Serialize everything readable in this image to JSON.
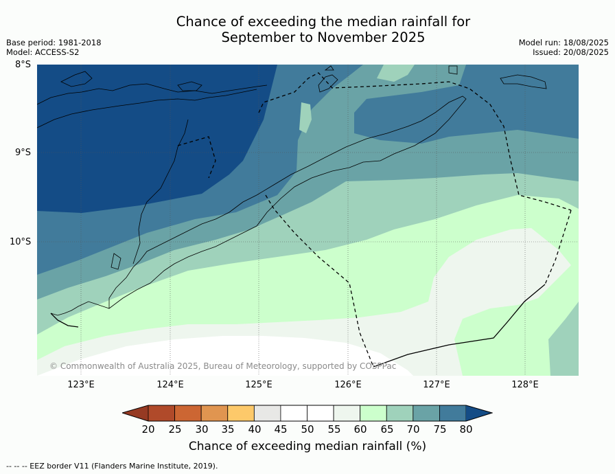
{
  "title_line1": "Chance of exceeding the median rainfall for",
  "title_line2": "September to November 2025",
  "base_period": "Base period: 1981-2018",
  "model": "Model: ACCESS-S2",
  "model_run": "Model run: 18/08/2025",
  "issued": "Issued: 20/08/2025",
  "lat_labels": [
    "8°S",
    "9°S",
    "10°S"
  ],
  "lon_labels": [
    "123°E",
    "124°E",
    "125°E",
    "126°E",
    "127°E",
    "128°E"
  ],
  "copyright": "© Commonwealth of Australia 2025, Bureau of Meteorology, supported by COSPPac",
  "colorbar": {
    "ticks": [
      "20",
      "25",
      "30",
      "35",
      "40",
      "45",
      "50",
      "55",
      "60",
      "65",
      "70",
      "75",
      "80"
    ],
    "colors": [
      "#b04a2a",
      "#cc6633",
      "#e09550",
      "#fdc96a",
      "#e8e8e6",
      "#ffffff",
      "#ffffff",
      "#eef6ee",
      "#ccffcc",
      "#9fd2bb",
      "#6aa3a6",
      "#417b9b"
    ],
    "under_color": "#963a23",
    "over_color": "#144c86",
    "label": "Chance of exceeding median rainfall (%)"
  },
  "footnote": "--  --  -- EEZ border V11 (Flanders Marine Institute, 2019)."
}
